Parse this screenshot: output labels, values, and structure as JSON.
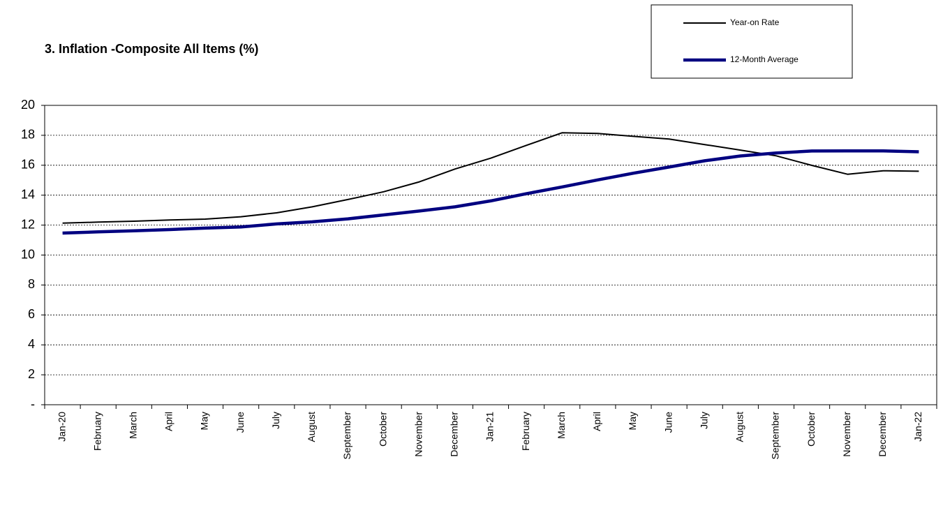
{
  "chart_data": {
    "type": "line",
    "title": "3. Inflation -Composite All Items (%)",
    "categories": [
      "Jan-20",
      "February",
      "March",
      "April",
      "May",
      "June",
      "July",
      "August",
      "September",
      "October",
      "November",
      "December",
      "Jan-21",
      "February",
      "March",
      "April",
      "May",
      "June",
      "July",
      "August",
      "September",
      "October",
      "November",
      "December",
      "Jan-22"
    ],
    "series": [
      {
        "name": "Year-on Rate",
        "color": "#000000",
        "values": [
          12.13,
          12.2,
          12.26,
          12.34,
          12.4,
          12.56,
          12.82,
          13.22,
          13.71,
          14.23,
          14.89,
          15.75,
          16.47,
          17.33,
          18.17,
          18.12,
          17.93,
          17.75,
          17.38,
          17.01,
          16.63,
          15.99,
          15.4,
          15.63,
          15.6
        ]
      },
      {
        "name": "12-Month Average",
        "color": "#000080",
        "values": [
          11.47,
          11.55,
          11.62,
          11.7,
          11.8,
          11.88,
          12.08,
          12.22,
          12.42,
          12.68,
          12.94,
          13.22,
          13.62,
          14.1,
          14.55,
          15.02,
          15.47,
          15.88,
          16.3,
          16.62,
          16.82,
          16.95,
          16.96,
          16.96,
          16.9
        ]
      }
    ],
    "ylim": [
      0,
      20
    ],
    "yticks": [
      {
        "value": 0,
        "label": "-"
      },
      2,
      4,
      6,
      8,
      10,
      12,
      14,
      16,
      18,
      20
    ],
    "grid": true
  }
}
